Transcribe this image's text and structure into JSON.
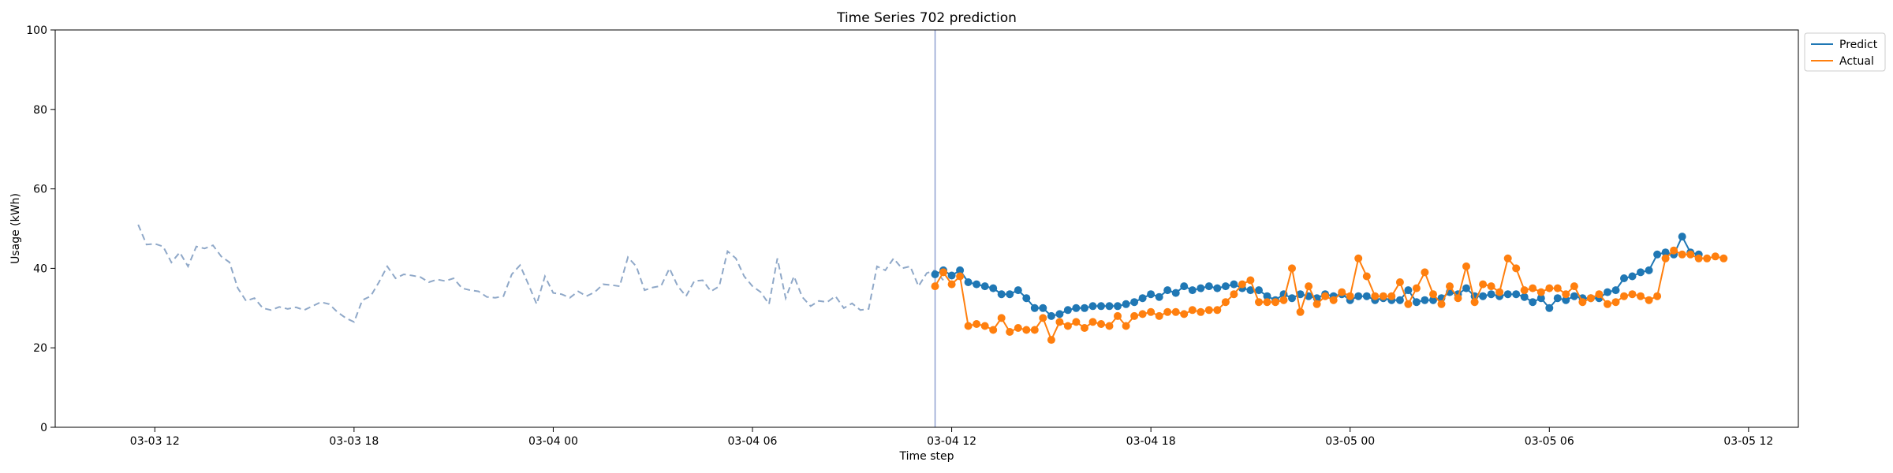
{
  "chart_data": {
    "type": "line",
    "title": "Time Series 702 prediction",
    "xlabel": "Time step",
    "ylabel": "Usage (kWh)",
    "ylim": [
      0,
      100
    ],
    "yticks": [
      0,
      20,
      40,
      60,
      80,
      100
    ],
    "xlim": [
      "2024-03-03 09:00",
      "2024-03-05 13:30"
    ],
    "xticks": [
      {
        "value": "2024-03-03 12:00",
        "label": "03-03 12"
      },
      {
        "value": "2024-03-03 18:00",
        "label": "03-03 18"
      },
      {
        "value": "2024-03-04 00:00",
        "label": "03-04 00"
      },
      {
        "value": "2024-03-04 06:00",
        "label": "03-04 06"
      },
      {
        "value": "2024-03-04 12:00",
        "label": "03-04 12"
      },
      {
        "value": "2024-03-04 18:00",
        "label": "03-04 18"
      },
      {
        "value": "2024-03-05 00:00",
        "label": "03-05 00"
      },
      {
        "value": "2024-03-05 06:00",
        "label": "03-05 06"
      },
      {
        "value": "2024-03-05 12:00",
        "label": "03-05 12"
      }
    ],
    "grid": false,
    "legend": "upper-right-outside",
    "forecast_start": "2024-03-04 11:30",
    "history": {
      "start": "2024-03-03 11:30",
      "step_minutes": 15,
      "color": "#8fa8c8",
      "style": "dashed",
      "values": [
        51,
        46,
        46.2,
        45.5,
        41.5,
        44,
        40.5,
        45.5,
        45,
        45.8,
        43,
        41.5,
        35,
        31.8,
        32.5,
        30,
        29.5,
        30.3,
        29.8,
        30.2,
        29.5,
        30.5,
        31.5,
        31,
        29,
        27.5,
        26.5,
        32,
        33,
        36.5,
        40.5,
        37.5,
        38.5,
        38.2,
        37.8,
        36.5,
        37.2,
        36.8,
        37.5,
        35,
        34.5,
        34.2,
        32.8,
        32.6,
        33,
        38.5,
        40.8,
        36,
        31,
        38,
        33.8,
        33.5,
        32.6,
        34.2,
        33,
        34,
        36,
        35.8,
        35.5,
        42.8,
        40.5,
        34.5,
        35.2,
        35.6,
        40,
        35.5,
        33,
        36.8,
        37,
        34.2,
        35.5,
        44.3,
        42.5,
        38,
        35.5,
        34,
        31,
        42.5,
        32.5,
        38,
        32.8,
        30.5,
        31.8,
        31.5,
        33,
        30,
        31.2,
        29.5,
        29.8,
        40.5,
        39.5,
        42.5,
        40,
        40.5,
        35.5,
        38.8,
        39.5,
        37
      ]
    },
    "series": [
      {
        "name": "Predict",
        "color": "#1f77b4",
        "start": "2024-03-04 11:30",
        "step_minutes": 15,
        "values": [
          38.5,
          39.5,
          38.2,
          39.5,
          36.5,
          36,
          35.5,
          35,
          33.5,
          33.5,
          34.5,
          32.5,
          30,
          30,
          28,
          28.5,
          29.5,
          30,
          30,
          30.5,
          30.5,
          30.5,
          30.5,
          31,
          31.5,
          32.5,
          33.5,
          32.8,
          34.5,
          33.8,
          35.5,
          34.5,
          35,
          35.5,
          35,
          35.5,
          36,
          35,
          34.5,
          34.5,
          33,
          32,
          33.5,
          32.5,
          33.5,
          33,
          32.5,
          33.5,
          33,
          33.5,
          32,
          33,
          33,
          32,
          32.5,
          32,
          32,
          34.5,
          31.5,
          32,
          32,
          32.5,
          34,
          33.5,
          35,
          33,
          33,
          33.5,
          33,
          33.5,
          33.5,
          32.8,
          31.5,
          32.5,
          30,
          32.5,
          32,
          33,
          32.5,
          32.5,
          32.5,
          34,
          34.5,
          37.5,
          38,
          39,
          39.5,
          43.5,
          44,
          43.5,
          48,
          44,
          43.5
        ]
      },
      {
        "name": "Actual",
        "color": "#ff7f0e",
        "start": "2024-03-04 11:30",
        "step_minutes": 15,
        "values": [
          35.5,
          39,
          36,
          38,
          25.5,
          26,
          25.5,
          24.5,
          27.5,
          24,
          25,
          24.5,
          24.5,
          27.5,
          22,
          26.5,
          25.5,
          26.5,
          25,
          26.5,
          26,
          25.5,
          28,
          25.5,
          28,
          28.5,
          29,
          28,
          29,
          29,
          28.5,
          29.5,
          29,
          29.5,
          29.5,
          31.5,
          33.5,
          36,
          37,
          31.5,
          31.5,
          31.5,
          32,
          40,
          29,
          35.5,
          31,
          33,
          32,
          34,
          33,
          42.5,
          38,
          33,
          33,
          33,
          36.5,
          31,
          35,
          39,
          33.5,
          31,
          35.5,
          32.5,
          40.5,
          31.5,
          36,
          35.5,
          34,
          42.5,
          40,
          34.5,
          35,
          34,
          35,
          35,
          33.5,
          35.5,
          31.5,
          32.5,
          33.5,
          31,
          31.5,
          33,
          33.5,
          33,
          32,
          33,
          42.5,
          44.5,
          43.5,
          43.5,
          42.5,
          42.5,
          43,
          42.5
        ]
      }
    ]
  }
}
